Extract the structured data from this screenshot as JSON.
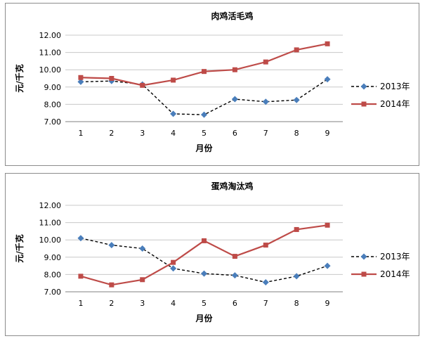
{
  "chart_data": [
    {
      "type": "line",
      "title": "肉鸡活毛鸡",
      "xlabel": "月份",
      "ylabel": "元/千克",
      "ylim": [
        7.0,
        12.0
      ],
      "yticks": [
        "7.00",
        "8.00",
        "9.00",
        "10.00",
        "11.00",
        "12.00"
      ],
      "categories": [
        "1",
        "2",
        "3",
        "4",
        "5",
        "6",
        "7",
        "8",
        "9"
      ],
      "grid": true,
      "legend_position": "right",
      "series": [
        {
          "name": "2013年",
          "values": [
            9.3,
            9.35,
            9.15,
            7.45,
            7.4,
            8.3,
            8.15,
            8.25,
            9.45
          ],
          "color": "#4a7ebb",
          "line": "dashed-black",
          "marker": "diamond"
        },
        {
          "name": "2014年",
          "values": [
            9.55,
            9.5,
            9.1,
            9.4,
            9.9,
            10.0,
            10.45,
            11.15,
            11.5
          ],
          "color": "#be4b48",
          "line": "solid",
          "marker": "square"
        }
      ]
    },
    {
      "type": "line",
      "title": "蛋鸡淘汰鸡",
      "xlabel": "月份",
      "ylabel": "元/千克",
      "ylim": [
        7.0,
        12.0
      ],
      "yticks": [
        "7.00",
        "8.00",
        "9.00",
        "10.00",
        "11.00",
        "12.00"
      ],
      "categories": [
        "1",
        "2",
        "3",
        "4",
        "5",
        "6",
        "7",
        "8",
        "9"
      ],
      "grid": true,
      "legend_position": "right",
      "series": [
        {
          "name": "2013年",
          "values": [
            10.1,
            9.7,
            9.5,
            8.35,
            8.05,
            7.95,
            7.55,
            7.9,
            8.5
          ],
          "color": "#4a7ebb",
          "line": "dashed-black",
          "marker": "diamond"
        },
        {
          "name": "2014年",
          "values": [
            7.9,
            7.4,
            7.7,
            8.7,
            9.95,
            9.05,
            9.7,
            10.6,
            10.85
          ],
          "color": "#be4b48",
          "line": "solid",
          "marker": "square"
        }
      ]
    }
  ]
}
